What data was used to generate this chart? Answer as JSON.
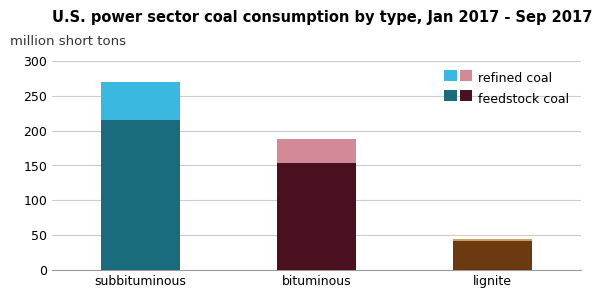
{
  "title": "U.S. power sector coal consumption by type, Jan 2017 - Sep 2017",
  "subtitle": "million short tons",
  "categories": [
    "subbituminous",
    "bituminous",
    "lignite"
  ],
  "feedstock_values": [
    215,
    153,
    42
  ],
  "refined_values": [
    55,
    35,
    2
  ],
  "feedstock_colors": [
    "#1a6b7c",
    "#4a1020",
    "#6b3a10"
  ],
  "refined_colors": [
    "#3ab8e0",
    "#d48a96",
    "#c8a060"
  ],
  "ylim": [
    0,
    300
  ],
  "yticks": [
    0,
    50,
    100,
    150,
    200,
    250,
    300
  ],
  "background_color": "#ffffff",
  "grid_color": "#cccccc",
  "title_fontsize": 10.5,
  "subtitle_fontsize": 9.5,
  "tick_fontsize": 9,
  "legend_labels": [
    "refined coal",
    "feedstock coal"
  ]
}
